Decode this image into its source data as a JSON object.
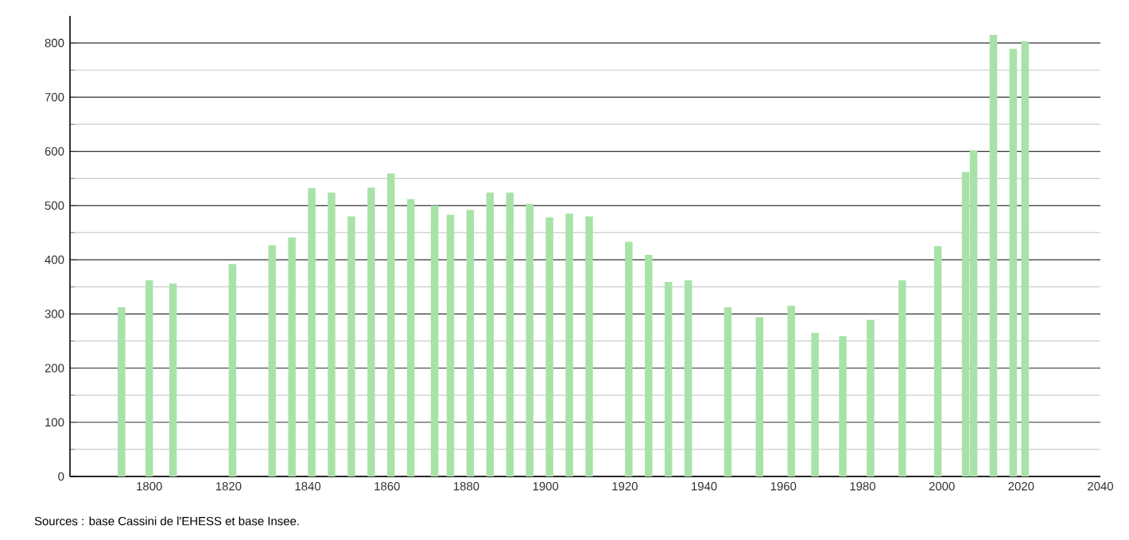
{
  "chart_data": {
    "type": "bar",
    "color": "#a8e2a8",
    "x": [
      1793,
      1800,
      1806,
      1821,
      1831,
      1836,
      1841,
      1846,
      1851,
      1856,
      1861,
      1866,
      1872,
      1876,
      1881,
      1886,
      1891,
      1896,
      1901,
      1906,
      1911,
      1921,
      1926,
      1931,
      1936,
      1946,
      1954,
      1962,
      1968,
      1975,
      1982,
      1990,
      1999,
      2006,
      2008,
      2013,
      2018,
      2021
    ],
    "values": [
      312,
      362,
      356,
      392,
      427,
      441,
      532,
      524,
      480,
      533,
      559,
      512,
      500,
      483,
      492,
      524,
      524,
      503,
      478,
      485,
      480,
      433,
      409,
      359,
      362,
      312,
      294,
      315,
      265,
      259,
      289,
      362,
      425,
      562,
      602,
      815,
      789,
      803
    ],
    "xlim": [
      1780,
      2040
    ],
    "xticks": [
      1800,
      1820,
      1840,
      1860,
      1880,
      1900,
      1920,
      1940,
      1960,
      1980,
      2000,
      2020,
      2040
    ],
    "ylim": [
      0,
      850
    ],
    "yticks": [
      0,
      100,
      200,
      300,
      400,
      500,
      600,
      700,
      800
    ],
    "grid": "y",
    "annotations": [
      "Sources : base Cassini de l'EHESS et base Insee."
    ]
  }
}
